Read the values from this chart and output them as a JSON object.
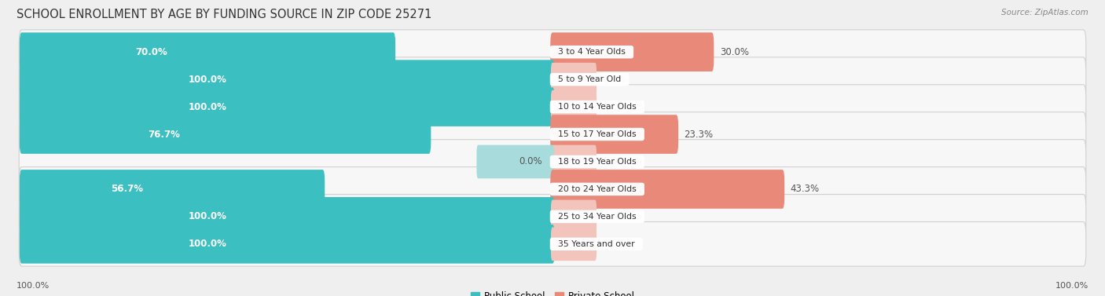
{
  "title": "SCHOOL ENROLLMENT BY AGE BY FUNDING SOURCE IN ZIP CODE 25271",
  "source": "Source: ZipAtlas.com",
  "categories": [
    "3 to 4 Year Olds",
    "5 to 9 Year Old",
    "10 to 14 Year Olds",
    "15 to 17 Year Olds",
    "18 to 19 Year Olds",
    "20 to 24 Year Olds",
    "25 to 34 Year Olds",
    "35 Years and over"
  ],
  "public_values": [
    70.0,
    100.0,
    100.0,
    76.7,
    0.0,
    56.7,
    100.0,
    100.0
  ],
  "private_values": [
    30.0,
    0.0,
    0.0,
    23.3,
    0.0,
    43.3,
    0.0,
    0.0
  ],
  "public_color": "#3bbfc0",
  "private_color": "#e8897a",
  "private_color_faint": "#f2c4bc",
  "public_color_faint": "#a8dcdc",
  "bar_bg_color": "#f7f7f7",
  "bar_border_color": "#d0d0d0",
  "bg_color": "#efefef",
  "title_color": "#333333",
  "source_color": "#888888",
  "label_color_dark": "#555555",
  "label_color_white": "#ffffff",
  "title_fontsize": 10.5,
  "label_fontsize": 8.5,
  "source_fontsize": 7.5,
  "cat_fontsize": 7.8,
  "figsize": [
    14.06,
    3.77
  ]
}
